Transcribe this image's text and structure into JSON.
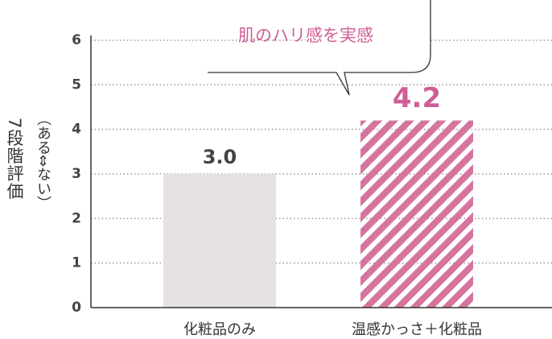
{
  "chart_data": {
    "type": "bar",
    "annotation": "肌のハリ感を実感",
    "y_label": "7段階評価",
    "y_label_sub": "（ある⇔ない）",
    "categories": [
      "化粧品のみ",
      "温感かっさ＋化粧品"
    ],
    "values": [
      3.0,
      4.2
    ],
    "value_labels": [
      "3.0",
      "4.2"
    ],
    "colors": [
      "#e6e1e3",
      "#d4749f"
    ],
    "label_colors": [
      "#444444",
      "#cf5e95"
    ],
    "hatch": [
      false,
      true
    ],
    "ylim": [
      0,
      6
    ],
    "yticks": [
      0,
      1,
      2,
      3,
      4,
      5,
      6
    ],
    "grid": true
  }
}
